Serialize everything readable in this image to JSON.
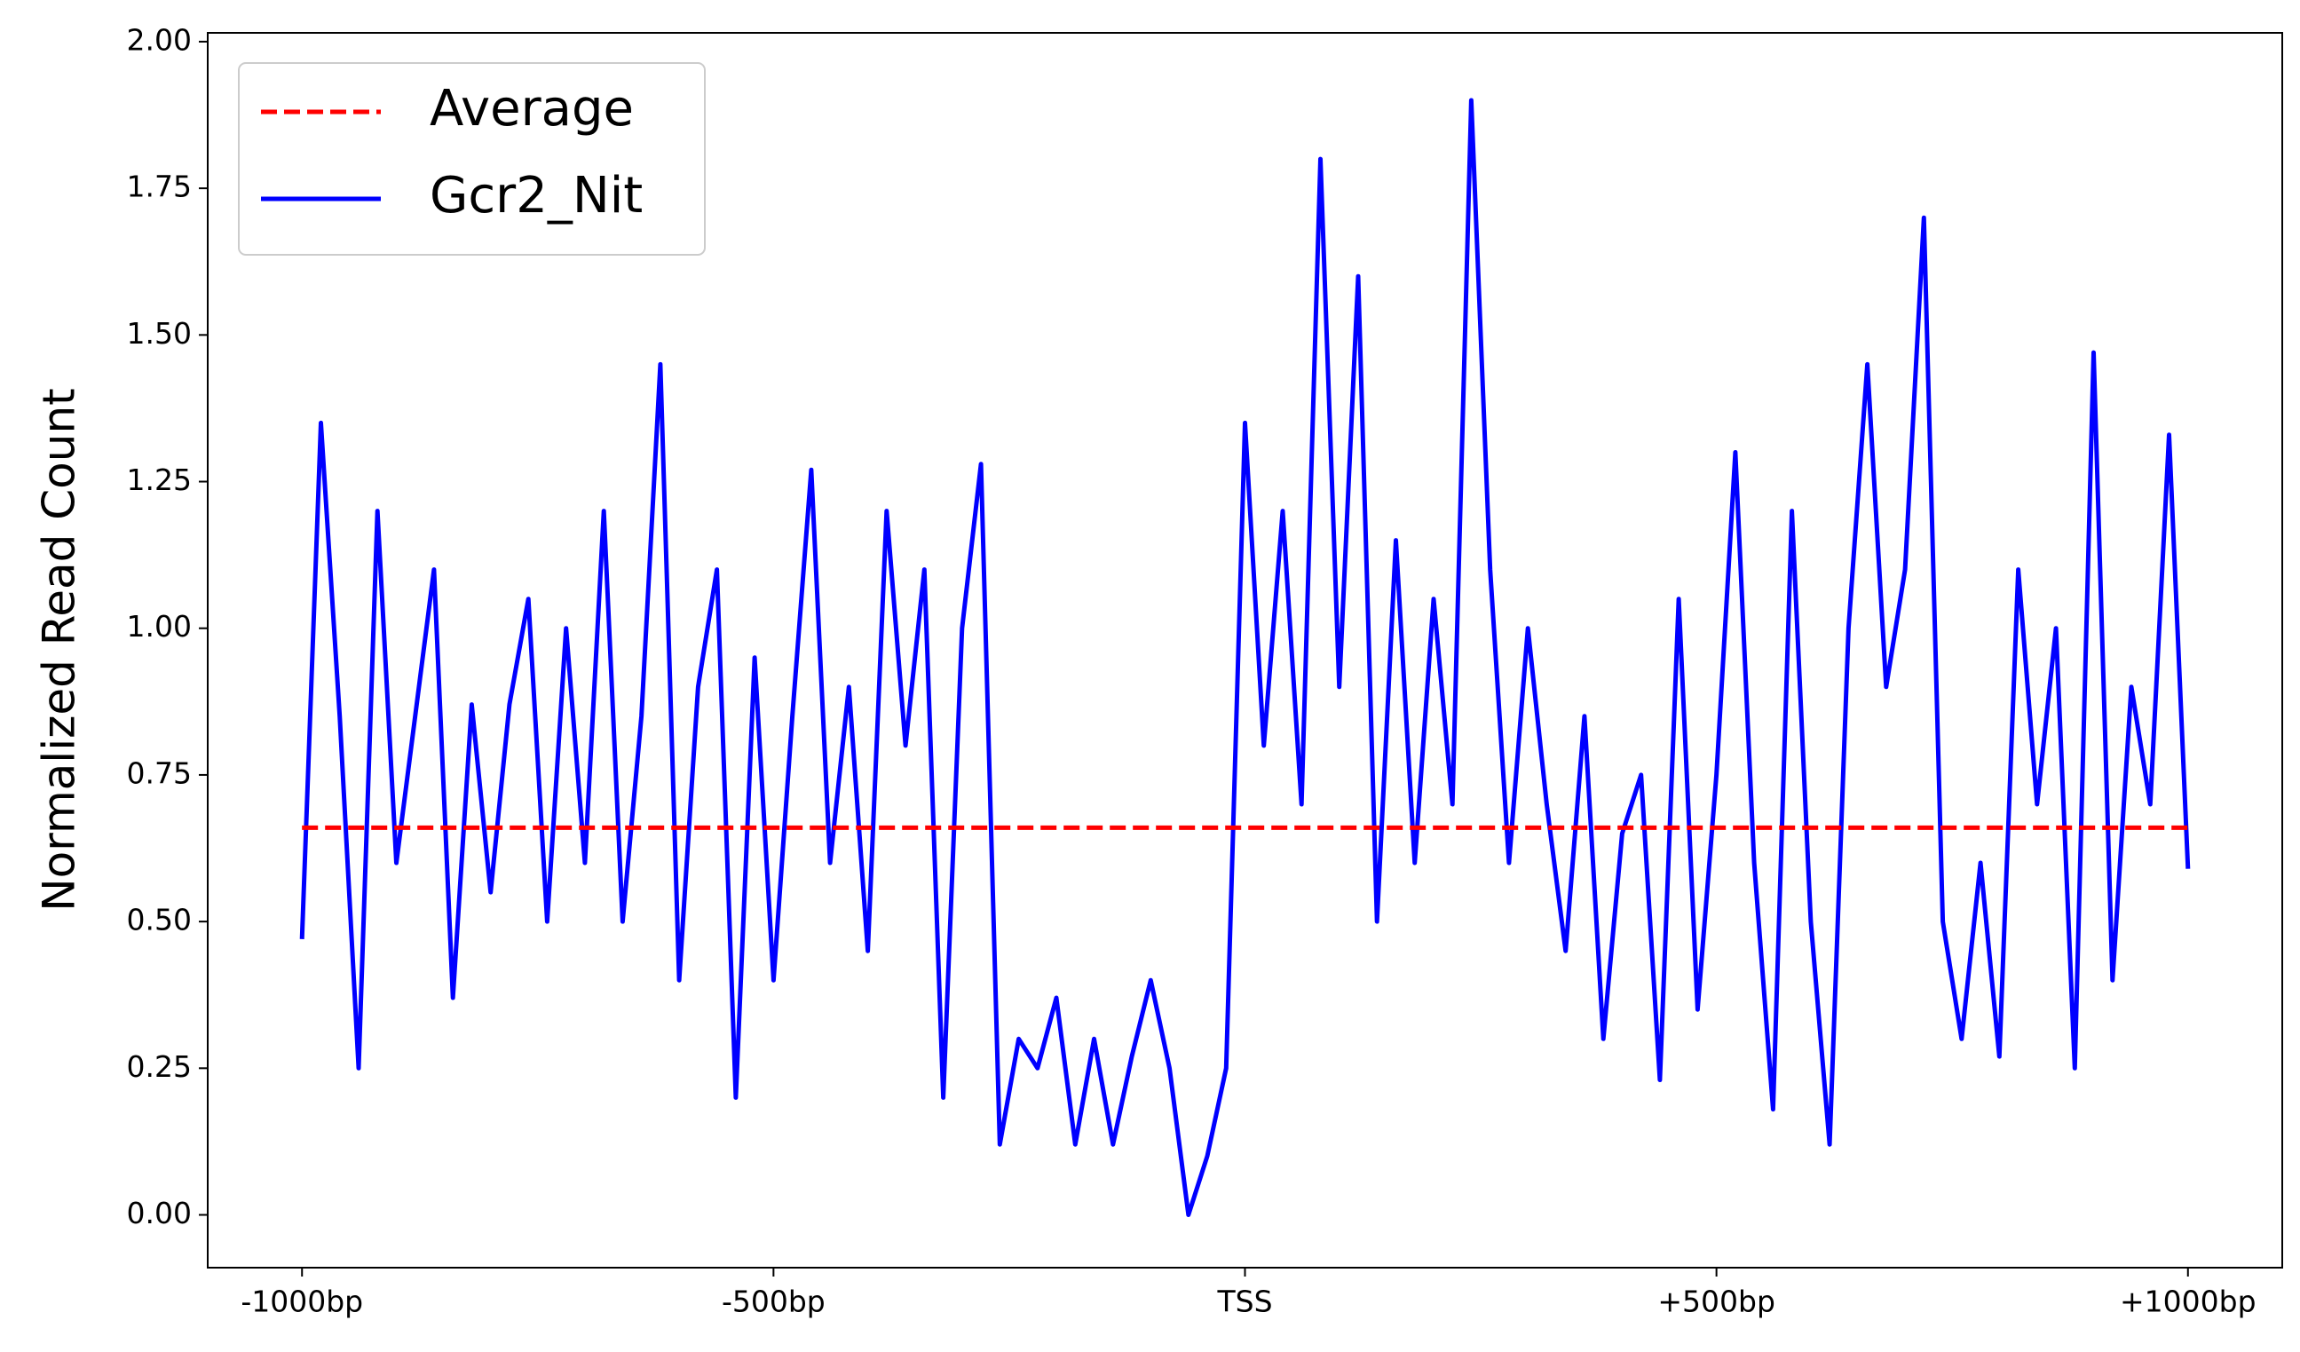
{
  "chart_data": {
    "type": "line",
    "ylabel": "Normalized Read Count",
    "xlim": [
      -1100,
      1100
    ],
    "ylim": [
      -0.09,
      2.015
    ],
    "xticks": [
      {
        "value": -1000,
        "label": "-1000bp"
      },
      {
        "value": -500,
        "label": "-500bp"
      },
      {
        "value": 0,
        "label": "TSS"
      },
      {
        "value": 500,
        "label": "+500bp"
      },
      {
        "value": 1000,
        "label": "+1000bp"
      }
    ],
    "yticks": [
      {
        "value": 0,
        "label": "0.00"
      },
      {
        "value": 0.25,
        "label": "0.25"
      },
      {
        "value": 0.5,
        "label": "0.50"
      },
      {
        "value": 0.75,
        "label": "0.75"
      },
      {
        "value": 1,
        "label": "1.00"
      },
      {
        "value": 1.25,
        "label": "1.25"
      },
      {
        "value": 1.5,
        "label": "1.50"
      },
      {
        "value": 1.75,
        "label": "1.75"
      },
      {
        "value": 2,
        "label": "2.00"
      }
    ],
    "grid": false,
    "legend": "upper left",
    "series": [
      {
        "name": "Average",
        "color": "#ff0000",
        "linestyle": "dashed",
        "x": [
          -1000,
          1000
        ],
        "values": [
          0.66,
          0.66
        ]
      },
      {
        "name": "Gcr2_Nit",
        "color": "#0000ff",
        "linestyle": "solid",
        "x": [
          -1000,
          -980,
          -960,
          -940,
          -920,
          -900,
          -880,
          -860,
          -840,
          -820,
          -800,
          -780,
          -760,
          -740,
          -720,
          -700,
          -680,
          -660,
          -640,
          -620,
          -600,
          -580,
          -560,
          -540,
          -520,
          -500,
          -480,
          -460,
          -440,
          -420,
          -400,
          -380,
          -360,
          -340,
          -320,
          -300,
          -280,
          -260,
          -240,
          -220,
          -200,
          -180,
          -160,
          -140,
          -120,
          -100,
          -80,
          -60,
          -40,
          -20,
          0,
          20,
          40,
          60,
          80,
          100,
          120,
          140,
          160,
          180,
          200,
          220,
          240,
          260,
          280,
          300,
          320,
          340,
          360,
          380,
          400,
          420,
          440,
          460,
          480,
          500,
          520,
          540,
          560,
          580,
          600,
          620,
          640,
          660,
          680,
          700,
          720,
          740,
          760,
          780,
          800,
          820,
          840,
          860,
          880,
          900,
          920,
          940,
          960,
          980,
          1000
        ],
        "values": [
          0.47,
          1.35,
          0.85,
          0.25,
          1.2,
          0.6,
          0.85,
          1.1,
          0.37,
          0.87,
          0.55,
          0.87,
          1.05,
          0.5,
          1.0,
          0.6,
          1.2,
          0.5,
          0.85,
          1.45,
          0.4,
          0.9,
          1.1,
          0.2,
          0.95,
          0.4,
          0.85,
          1.27,
          0.6,
          0.9,
          0.45,
          1.2,
          0.8,
          1.1,
          0.2,
          1.0,
          1.28,
          0.12,
          0.3,
          0.25,
          0.37,
          0.12,
          0.3,
          0.12,
          0.27,
          0.4,
          0.25,
          0.0,
          0.1,
          0.25,
          1.35,
          0.8,
          1.2,
          0.7,
          1.8,
          0.9,
          1.6,
          0.5,
          1.15,
          0.6,
          1.05,
          0.7,
          1.9,
          1.1,
          0.6,
          1.0,
          0.7,
          0.45,
          0.85,
          0.3,
          0.65,
          0.75,
          0.23,
          1.05,
          0.35,
          0.75,
          1.3,
          0.6,
          0.18,
          1.2,
          0.5,
          0.12,
          1.0,
          1.45,
          0.9,
          1.1,
          1.7,
          0.5,
          0.3,
          0.6,
          0.27,
          1.1,
          0.7,
          1.0,
          0.25,
          1.47,
          0.4,
          0.9,
          0.7,
          1.33,
          0.59
        ]
      }
    ]
  }
}
